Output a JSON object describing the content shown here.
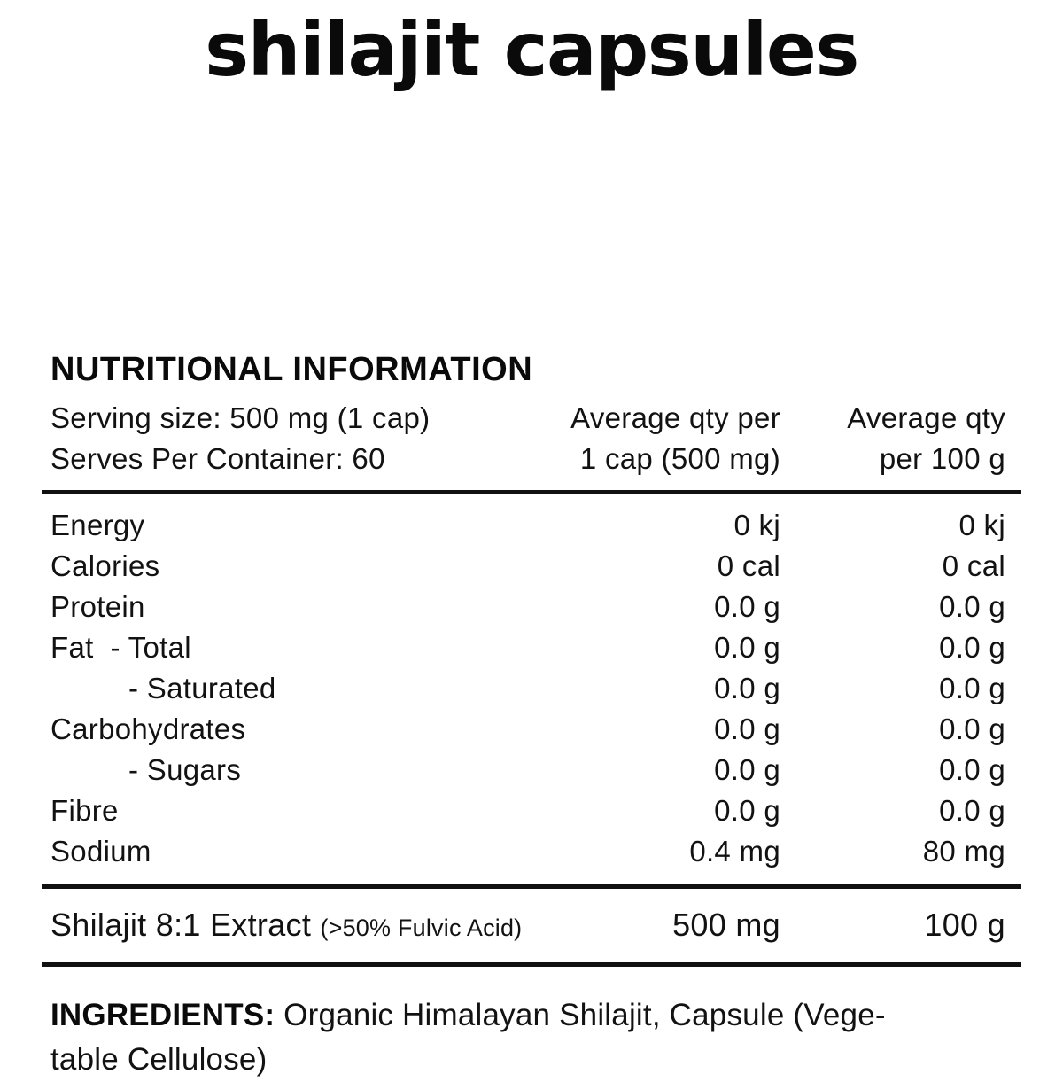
{
  "title": "shilajit capsules",
  "section_title": "NUTRITIONAL INFORMATION",
  "header": {
    "serving_size": "Serving size: 500 mg (1 cap)",
    "serves_per_container": "Serves Per Container: 60",
    "col1_line1": "Average qty per",
    "col1_line2": "1 cap (500 mg)",
    "col2_line1": "Average qty",
    "col2_line2": "per 100 g"
  },
  "rows": [
    {
      "label": "Energy",
      "per_serve": "0 kj",
      "per_100g": "0 kj"
    },
    {
      "label": "Calories",
      "per_serve": "0 cal",
      "per_100g": "0 cal"
    },
    {
      "label": "Protein",
      "per_serve": "0.0 g",
      "per_100g": "0.0 g"
    },
    {
      "label": "Fat  - Total",
      "per_serve": "0.0 g",
      "per_100g": "0.0 g"
    },
    {
      "label": "- Saturated",
      "per_serve": "0.0 g",
      "per_100g": "0.0 g"
    },
    {
      "label": "Carbohydrates",
      "per_serve": "0.0 g",
      "per_100g": "0.0 g"
    },
    {
      "label": "- Sugars",
      "per_serve": "0.0 g",
      "per_100g": "0.0 g"
    },
    {
      "label": "Fibre",
      "per_serve": "0.0 g",
      "per_100g": "0.0 g"
    },
    {
      "label": "Sodium",
      "per_serve": "0.4 mg",
      "per_100g": "80 mg"
    }
  ],
  "extract_row": {
    "label": "Shilajit 8:1 Extract",
    "note": "(>50% Fulvic Acid)",
    "per_serve": "500 mg",
    "per_100g": "100 g"
  },
  "ingredients": {
    "label": "INGREDIENTS:",
    "line1": " Organic Himalayan Shilajit, Capsule (Vege-",
    "line2": "table Cellulose)"
  },
  "colors": {
    "background": "#ffffff",
    "text": "#121212",
    "rule": "#111111"
  }
}
